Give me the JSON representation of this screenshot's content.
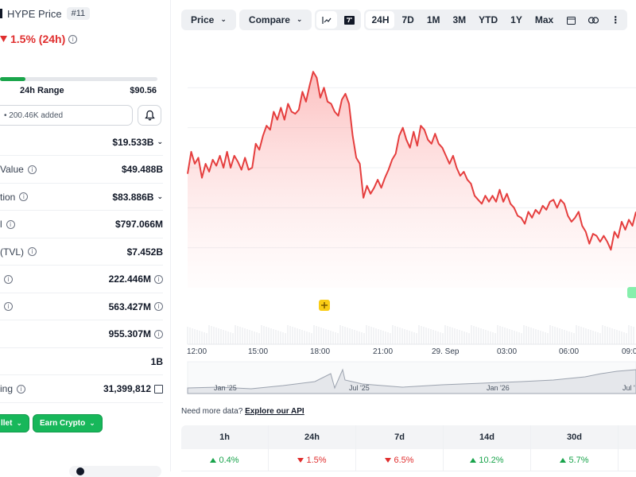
{
  "coin": {
    "name": "HYPE Price",
    "rank": "#11"
  },
  "price_change": "1.5% (24h)",
  "range": {
    "label": "24h Range",
    "high": "$90.56",
    "fill_fraction": 0.16
  },
  "watchlist": {
    "text": "• 200.46K added"
  },
  "stats": [
    {
      "label": "",
      "value": "$19.533B",
      "chevron": true,
      "info": false
    },
    {
      "label": "Value",
      "value": "$49.488B",
      "chevron": false,
      "info": true
    },
    {
      "label": "tion",
      "value": "$83.886B",
      "chevron": true,
      "info": true
    },
    {
      "label": "l",
      "value": "$797.066M",
      "chevron": false,
      "info": true
    },
    {
      "label": "(TVL)",
      "value": "$7.452B",
      "chevron": false,
      "info": true
    },
    {
      "label": "",
      "value": "222.446M",
      "chevron": false,
      "info": true,
      "value_info": true
    },
    {
      "label": "",
      "value": "563.427M",
      "chevron": false,
      "info": true,
      "value_info": true
    },
    {
      "label": "",
      "value": "955.307M",
      "chevron": false,
      "info": false,
      "value_info": true
    },
    {
      "label": "",
      "value": "1B",
      "chevron": false,
      "info": false
    },
    {
      "label": "ing",
      "value": "31,399,812",
      "chevron": false,
      "info": true,
      "external": true
    }
  ],
  "buttons": {
    "wallet": "llet",
    "earn": "Earn Crypto"
  },
  "toolbar": {
    "price": "Price",
    "compare": "Compare",
    "ranges": [
      "24H",
      "7D",
      "1M",
      "3M",
      "YTD",
      "1Y",
      "Max"
    ],
    "active_range": "24H"
  },
  "chart_data": {
    "type": "area",
    "series": [
      {
        "values": [
          58.5,
          64,
          61,
          62.5,
          57.5,
          61,
          59,
          62,
          60.5,
          63,
          60,
          64,
          60,
          63,
          61.5,
          59.5,
          62.5,
          59.5,
          60,
          66,
          64.5,
          68,
          70.5,
          69.5,
          74,
          72,
          75,
          72,
          76,
          74,
          73.5,
          74.5,
          79,
          76.5,
          80.5,
          84,
          82.5,
          77.5,
          80,
          76.5,
          76,
          74,
          73,
          77,
          78.5,
          76,
          68,
          62.5,
          61,
          52.5,
          55.5,
          53.5,
          55,
          57,
          55,
          57.5,
          59.5,
          62,
          63.5,
          68,
          70,
          67,
          65,
          69,
          65.5,
          70.5,
          69.5,
          67,
          66,
          68.5,
          66,
          65,
          63,
          61,
          63,
          60,
          58,
          59,
          57,
          56,
          53,
          52,
          51,
          53,
          51.5,
          53,
          51.5,
          54.5,
          51.5,
          53.5,
          51,
          50,
          48,
          47.5,
          46,
          49,
          47.5,
          49.5,
          48.5,
          50.5,
          49.5,
          51.5,
          52,
          50,
          52,
          51,
          48,
          46.5,
          47.5,
          49,
          45.5,
          44,
          41,
          43.5,
          43,
          41.5,
          43,
          41.5,
          39.5,
          44,
          42.5,
          46.5,
          44.5,
          47,
          45.5,
          49
        ],
        "color": "#e53e3e"
      }
    ],
    "x_ticks": [
      "12:00",
      "15:00",
      "18:00",
      "21:00",
      "29. Sep",
      "03:00",
      "06:00",
      "09:0"
    ],
    "ylim": [
      30,
      90
    ],
    "grid": true
  },
  "navigator_ticks": [
    "Jan '25",
    "Jul '25",
    "Jan '26",
    "Jul '"
  ],
  "api": {
    "prefix": "Need more data?",
    "link": "Explore our API"
  },
  "performance": {
    "headers": [
      "1h",
      "24h",
      "7d",
      "14d",
      "30d"
    ],
    "values": [
      {
        "value": "0.4%",
        "dir": "up"
      },
      {
        "value": "1.5%",
        "dir": "down"
      },
      {
        "value": "6.5%",
        "dir": "down"
      },
      {
        "value": "10.2%",
        "dir": "up"
      },
      {
        "value": "5.7%",
        "dir": "up"
      }
    ]
  },
  "colors": {
    "up": "#17a34a",
    "down": "#e02e2e",
    "accent_green": "#17b75a"
  }
}
